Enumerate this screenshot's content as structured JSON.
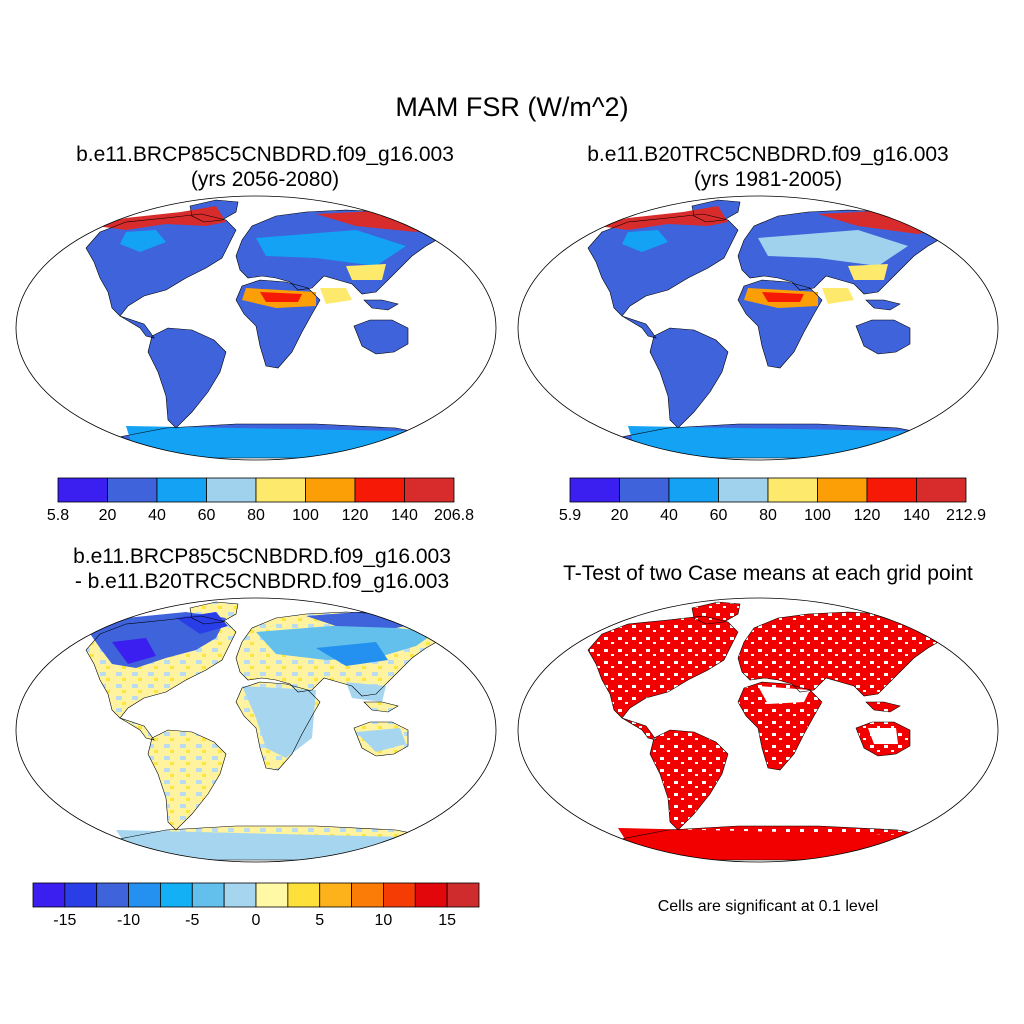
{
  "title": "MAM FSR (W/m^2)",
  "panels": [
    {
      "title_line1": "b.e11.BRCP85C5CNBDRD.f09_g16.003",
      "title_line2": "(yrs 2056-2080)",
      "colorbar": {
        "colors": [
          "#3b1ef0",
          "#3f63da",
          "#14a2f4",
          "#a0d2ee",
          "#fde96c",
          "#fc9f07",
          "#f61905",
          "#d82b2b"
        ],
        "labels": [
          "5.8",
          "20",
          "40",
          "60",
          "80",
          "100",
          "120",
          "140",
          "206.8"
        ]
      }
    },
    {
      "title_line1": "b.e11.B20TRC5CNBDRD.f09_g16.003",
      "title_line2": "(yrs 1981-2005)",
      "colorbar": {
        "colors": [
          "#3b1ef0",
          "#3f63da",
          "#14a2f4",
          "#a0d2ee",
          "#fde96c",
          "#fc9f07",
          "#f61905",
          "#d82b2b"
        ],
        "labels": [
          "5.9",
          "20",
          "40",
          "60",
          "80",
          "100",
          "120",
          "140",
          "212.9"
        ]
      }
    },
    {
      "title_line1": "b.e11.BRCP85C5CNBDRD.f09_g16.003",
      "title_line2": "- b.e11.B20TRC5CNBDRD.f09_g16.003",
      "colorbar": {
        "colors": [
          "#3b1ef0",
          "#2a3ee8",
          "#3f63da",
          "#2490f0",
          "#14b0f6",
          "#63bfec",
          "#a6d6ef",
          "#fff9a6",
          "#fee03a",
          "#fdb21c",
          "#fb7d08",
          "#f63c05",
          "#e2070a",
          "#cf2d2d"
        ],
        "labels": [
          "-15",
          "-10",
          "-5",
          "0",
          "5",
          "10",
          "15"
        ]
      }
    },
    {
      "title": "T-Test of two Case means at each grid point",
      "note": "Cells are significant at 0.1 level"
    }
  ],
  "colors": {
    "sig": "#f20000",
    "antarctica_abs": "#14a2f4",
    "antarctica_diff": "#a6d6ef"
  }
}
